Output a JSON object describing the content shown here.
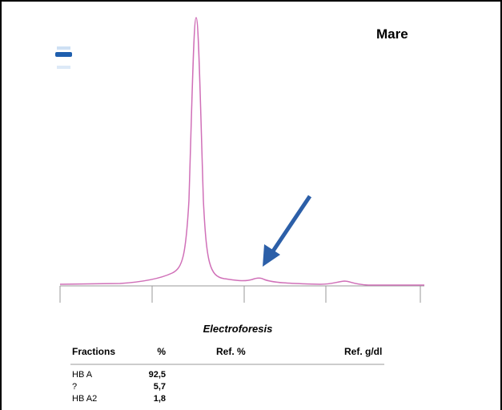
{
  "label": "Mare",
  "title": "Electroforesis",
  "table": {
    "headers": [
      "Fractions",
      "%",
      "Ref. %",
      "Ref. g/dl"
    ],
    "rows": [
      [
        "HB A",
        "92,5"
      ],
      [
        "?",
        "5,7"
      ],
      [
        "HB A2",
        "1,8"
      ]
    ]
  }
}
